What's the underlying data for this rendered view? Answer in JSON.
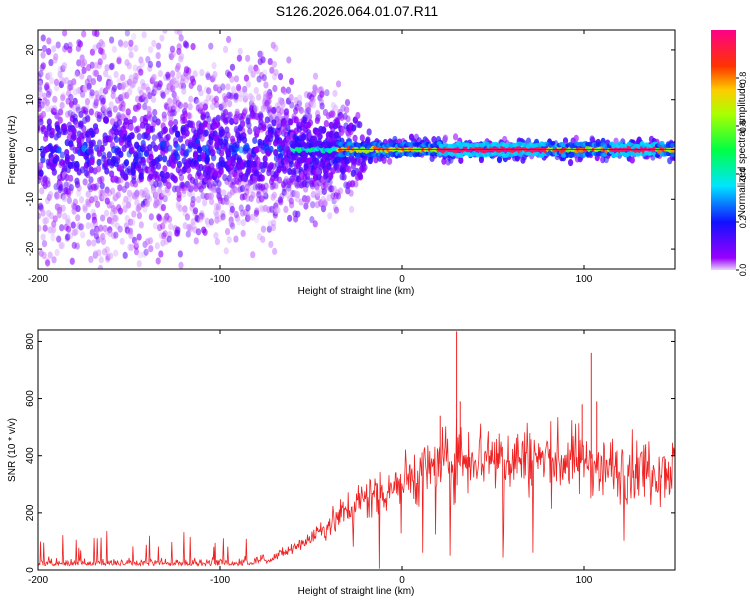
{
  "title": "S126.2026.064.01.07.R11",
  "chart_data": [
    {
      "type": "heatmap",
      "name": "spectrogram",
      "xlabel": "Height of straight line (km)",
      "ylabel": "Frequency (Hz)",
      "xlim": [
        -200,
        150
      ],
      "ylim": [
        -24,
        24
      ],
      "xticks": [
        -200,
        -100,
        0,
        100
      ],
      "yticks": [
        -20,
        -10,
        0,
        10,
        20
      ],
      "colorbar": {
        "label": "Normalized spectral amplitude",
        "range": [
          0,
          1
        ],
        "ticks": [
          0.0,
          0.2,
          0.4,
          0.6,
          0.8
        ],
        "colormap": [
          "#9900ff",
          "#0000ff",
          "#00ffff",
          "#00ff00",
          "#ffff00",
          "#ff0000",
          "#ff00aa"
        ]
      },
      "features": [
        {
          "x_from": -200,
          "x_to": -40,
          "description": "diffuse broadband scatter",
          "freq_spread_hz": 24
        },
        {
          "x_from": -40,
          "x_to": 150,
          "description": "narrow carrier line at 0 Hz",
          "freq_spread_hz": 2
        }
      ]
    },
    {
      "type": "line",
      "name": "snr",
      "xlabel": "Height of straight line (km)",
      "ylabel": "SNR (10 * v/v)",
      "xlim": [
        -200,
        150
      ],
      "ylim": [
        0,
        840
      ],
      "xticks": [
        -200,
        -100,
        0,
        100
      ],
      "yticks": [
        0,
        200,
        400,
        600,
        800
      ],
      "color": "#ee2222",
      "series": [
        {
          "name": "SNR",
          "x": [
            -200,
            -180,
            -160,
            -140,
            -120,
            -100,
            -90,
            -80,
            -70,
            -60,
            -50,
            -40,
            -30,
            -20,
            -10,
            0,
            10,
            20,
            30,
            40,
            50,
            60,
            70,
            80,
            90,
            100,
            104,
            108,
            115,
            130,
            150
          ],
          "values": [
            15,
            15,
            15,
            15,
            15,
            15,
            15,
            20,
            45,
            75,
            115,
            160,
            210,
            250,
            280,
            310,
            340,
            370,
            390,
            400,
            400,
            395,
            390,
            385,
            385,
            385,
            390,
            355,
            355,
            355,
            355
          ]
        }
      ],
      "peaks": [
        {
          "x": 21,
          "y": 540
        },
        {
          "x": 30,
          "y": 835
        },
        {
          "x": 32,
          "y": 590
        },
        {
          "x": 99,
          "y": 580
        },
        {
          "x": 104,
          "y": 760
        },
        {
          "x": 107,
          "y": 590
        }
      ]
    }
  ]
}
